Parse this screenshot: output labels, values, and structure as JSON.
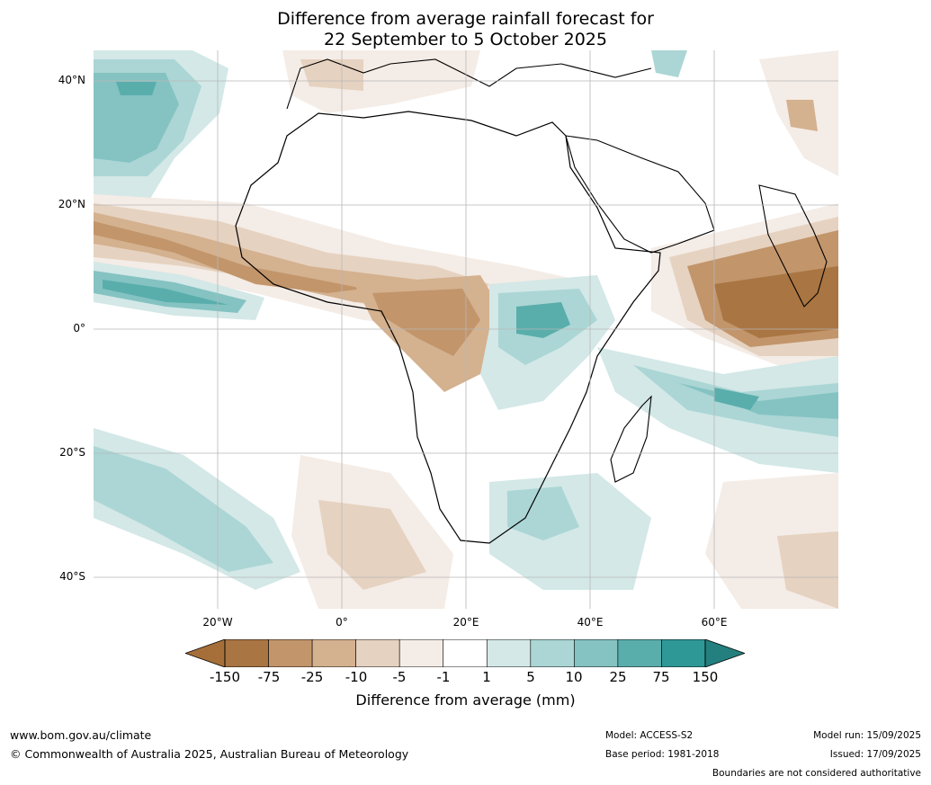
{
  "title_line1": "Difference from average rainfall forecast for",
  "title_line2": "22 September to 5 October 2025",
  "lat_labels": [
    "40°N",
    "20°N",
    "0°",
    "20°S",
    "40°S"
  ],
  "lon_labels": [
    "20°W",
    "0°",
    "20°E",
    "40°E",
    "60°E"
  ],
  "colorbar": {
    "label": "Difference from average (mm)",
    "ticks": [
      "-150",
      "-75",
      "-25",
      "-10",
      "-5",
      "-1",
      "1",
      "5",
      "10",
      "25",
      "75",
      "150"
    ],
    "colors": [
      "#a66f3a",
      "#a97542",
      "#c2956b",
      "#d4b18f",
      "#e6d2c0",
      "#f4ece6",
      "#ffffff",
      "#d3e8e7",
      "#abd6d5",
      "#84c3c2",
      "#59aeac",
      "#2e9896",
      "#23807e"
    ]
  },
  "footer": {
    "website": "www.bom.gov.au/climate",
    "copyright": "© Commonwealth of Australia 2025, Australian Bureau of Meteorology",
    "model": "Model: ACCESS-S2",
    "base_period": "Base period: 1981-2018",
    "model_run": "Model run: 15/09/2025",
    "issued": "Issued: 17/09/2025",
    "disclaimer": "Boundaries are not considered authoritative"
  }
}
